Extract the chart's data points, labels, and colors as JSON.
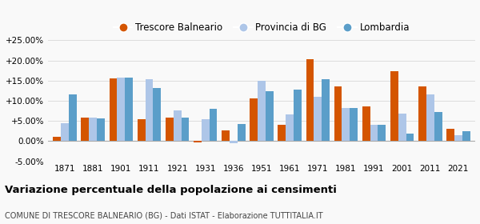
{
  "years": [
    1871,
    1881,
    1901,
    1911,
    1921,
    1931,
    1936,
    1951,
    1961,
    1971,
    1981,
    1991,
    2001,
    2011,
    2021
  ],
  "trescore": [
    1.0,
    5.8,
    15.6,
    5.4,
    5.8,
    -0.4,
    2.7,
    10.5,
    4.1,
    20.4,
    13.5,
    8.7,
    17.3,
    13.5,
    3.0
  ],
  "provincia_bg": [
    4.5,
    5.8,
    15.7,
    15.3,
    7.6,
    5.5,
    -0.5,
    14.9,
    6.6,
    11.0,
    8.2,
    4.1,
    6.8,
    11.5,
    1.5
  ],
  "lombardia": [
    11.6,
    5.7,
    15.7,
    13.2,
    5.9,
    8.0,
    4.3,
    12.4,
    12.8,
    15.4,
    8.3,
    4.0,
    1.9,
    7.3,
    2.5
  ],
  "color_trescore": "#d45500",
  "color_provincia": "#aec6e8",
  "color_lombardia": "#5b9ec9",
  "title": "Variazione percentuale della popolazione ai censimenti",
  "subtitle": "COMUNE DI TRESCORE BALNEARIO (BG) - Dati ISTAT - Elaborazione TUTTITALIA.IT",
  "legend_labels": [
    "Trescore Balneario",
    "Provincia di BG",
    "Lombardia"
  ],
  "ylim": [
    -5.0,
    25.0
  ],
  "yticks": [
    -5.0,
    0.0,
    5.0,
    10.0,
    15.0,
    20.0,
    25.0
  ],
  "background_color": "#f9f9f9",
  "grid_color": "#dddddd"
}
